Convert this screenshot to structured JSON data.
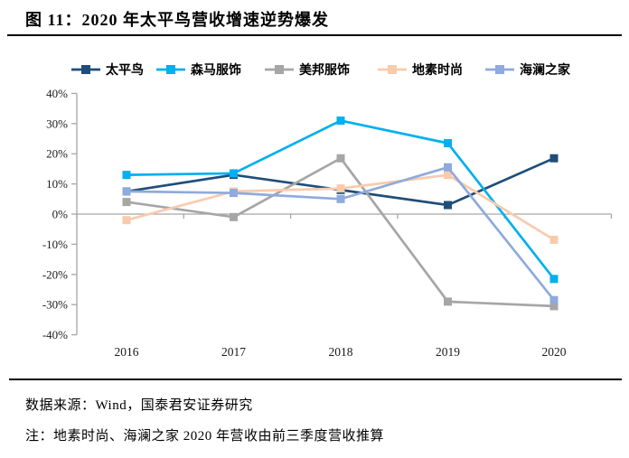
{
  "figure": {
    "title": "图 11：2020 年太平鸟营收增速逆势爆发",
    "source": "数据来源：Wind，国泰君安证券研究",
    "note": "注：地素时尚、海澜之家 2020 年营收由前三季度营收推算"
  },
  "chart_data": {
    "type": "line",
    "title": "",
    "xlabel": "",
    "ylabel": "",
    "categories": [
      "2016",
      "2017",
      "2018",
      "2019",
      "2020"
    ],
    "series": [
      {
        "name": "太平鸟",
        "color": "#1F4E79",
        "values": [
          7.5,
          13,
          8,
          3,
          18.5
        ]
      },
      {
        "name": "森马服饰",
        "color": "#00B0F0",
        "values": [
          13,
          13.5,
          31,
          23.5,
          -21.5
        ]
      },
      {
        "name": "美邦服饰",
        "color": "#A6A6A6",
        "values": [
          4,
          -1,
          18.5,
          -29,
          -30.5
        ]
      },
      {
        "name": "地素时尚",
        "color": "#F8CBAD",
        "values": [
          -2,
          7.5,
          8.5,
          13,
          -8.5
        ]
      },
      {
        "name": "海澜之家",
        "color": "#8FAADC",
        "values": [
          7.5,
          7,
          5,
          15.5,
          -28.5
        ]
      }
    ],
    "ylim": [
      -40,
      40
    ],
    "ytick_step": 10,
    "ytick_labels": [
      "40%",
      "30%",
      "20%",
      "10%",
      "0%",
      "-10%",
      "-20%",
      "-30%",
      "-40%"
    ],
    "marker_shape": "square",
    "legend_position": "top",
    "grid": false,
    "axis_color": "#A6A6A6",
    "label_color": "#1a1a1a",
    "legend_text_color": "#000000"
  }
}
